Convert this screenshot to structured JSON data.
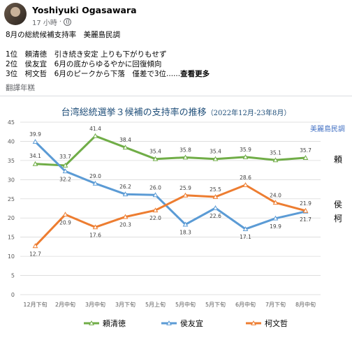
{
  "post": {
    "author": "Yoshiyuki Ogasawara",
    "time": "17 小時",
    "separator": "·",
    "lines": [
      "8月の総統候補支持率　美麗島民調",
      "",
      "1位　頼清徳　引き続き安定 上りも下がりもせず",
      "2位　侯友宜　6月の底からゆるやかに回復傾向",
      "3位　柯文哲　6月のピークから下落　僅差で3位......"
    ],
    "see_more": "查看更多",
    "translate": "翻譯年糕"
  },
  "chart": {
    "title_main": "台湾総統選挙３候補の支持率の推移",
    "title_sub": "（2022年12月-23年8月）",
    "source": "美麗島民調",
    "colors": {
      "lai": "#70ad47",
      "hou": "#5b9bd5",
      "ko": "#ed7d31"
    },
    "side_labels": {
      "lai": "頼",
      "hou": "侯",
      "ko": "柯"
    }
  },
  "chart_data": {
    "type": "line",
    "title": "台湾総統選挙３候補の支持率の推移（2022年12月-23年8月）",
    "categories": [
      "12月下旬",
      "2月中旬",
      "3月中旬",
      "3月下旬",
      "5月上旬",
      "5月中旬",
      "5月下旬",
      "6月中旬",
      "7月下旬",
      "8月中旬"
    ],
    "ylim": [
      0,
      45
    ],
    "yticks": [
      0,
      5,
      10,
      15,
      20,
      25,
      30,
      35,
      40,
      45
    ],
    "grid": true,
    "legend_position": "bottom",
    "series": [
      {
        "key": "lai",
        "name": "頼清徳",
        "values": [
          34.1,
          33.7,
          41.4,
          38.4,
          35.4,
          35.8,
          35.4,
          35.9,
          35.1,
          35.7
        ]
      },
      {
        "key": "hou",
        "name": "侯友宜",
        "values": [
          39.9,
          32.2,
          29.0,
          26.2,
          26.0,
          18.3,
          22.6,
          17.1,
          19.9,
          21.7
        ]
      },
      {
        "key": "ko",
        "name": "柯文哲",
        "values": [
          12.7,
          20.9,
          17.6,
          20.3,
          22.0,
          25.9,
          25.5,
          28.6,
          24.0,
          21.9
        ]
      }
    ]
  }
}
